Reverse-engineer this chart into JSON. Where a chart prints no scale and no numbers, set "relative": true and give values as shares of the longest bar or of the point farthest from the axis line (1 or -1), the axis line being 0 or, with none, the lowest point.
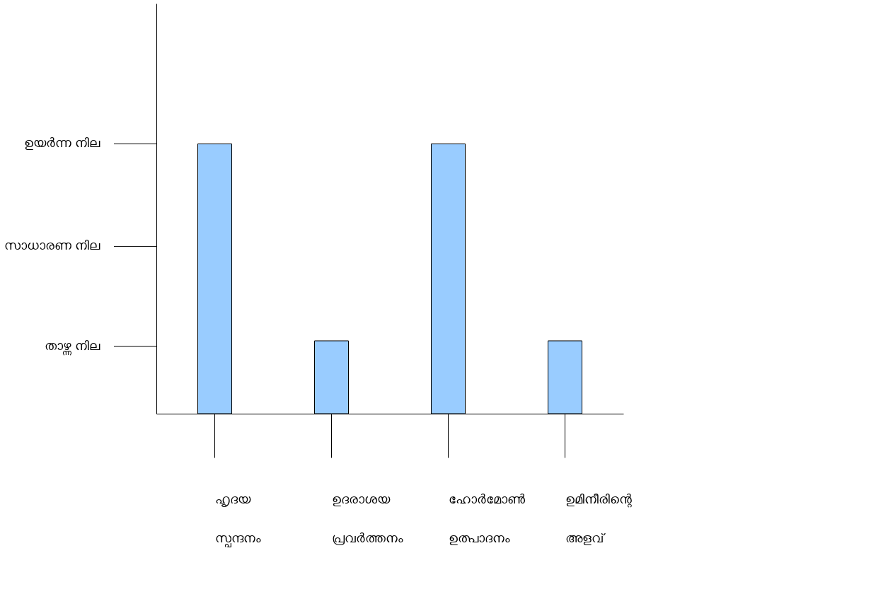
{
  "chart_data": {
    "type": "bar",
    "categories": [
      "ഹൃദയ സ്പന്ദനം",
      "ഉദരാശയ പ്രവര്‍ത്തനം",
      "ഹോര്‍മോണ്‍ ഉത്പാദനം",
      "ഉമിനീരിന്റെ അളവ്"
    ],
    "values": [
      1,
      0.27,
      1,
      0.27
    ],
    "relative": true,
    "color": "#99ccff",
    "ref_lines": [
      {
        "axis": "y",
        "value": 1,
        "label": "ഉയര്‍ന്ന നില"
      },
      {
        "axis": "y",
        "value": 0.62,
        "label": "സാധാരണ നില"
      },
      {
        "axis": "y",
        "value": 0.25,
        "label": "താഴ്ന്ന നില"
      }
    ],
    "grid": false
  }
}
